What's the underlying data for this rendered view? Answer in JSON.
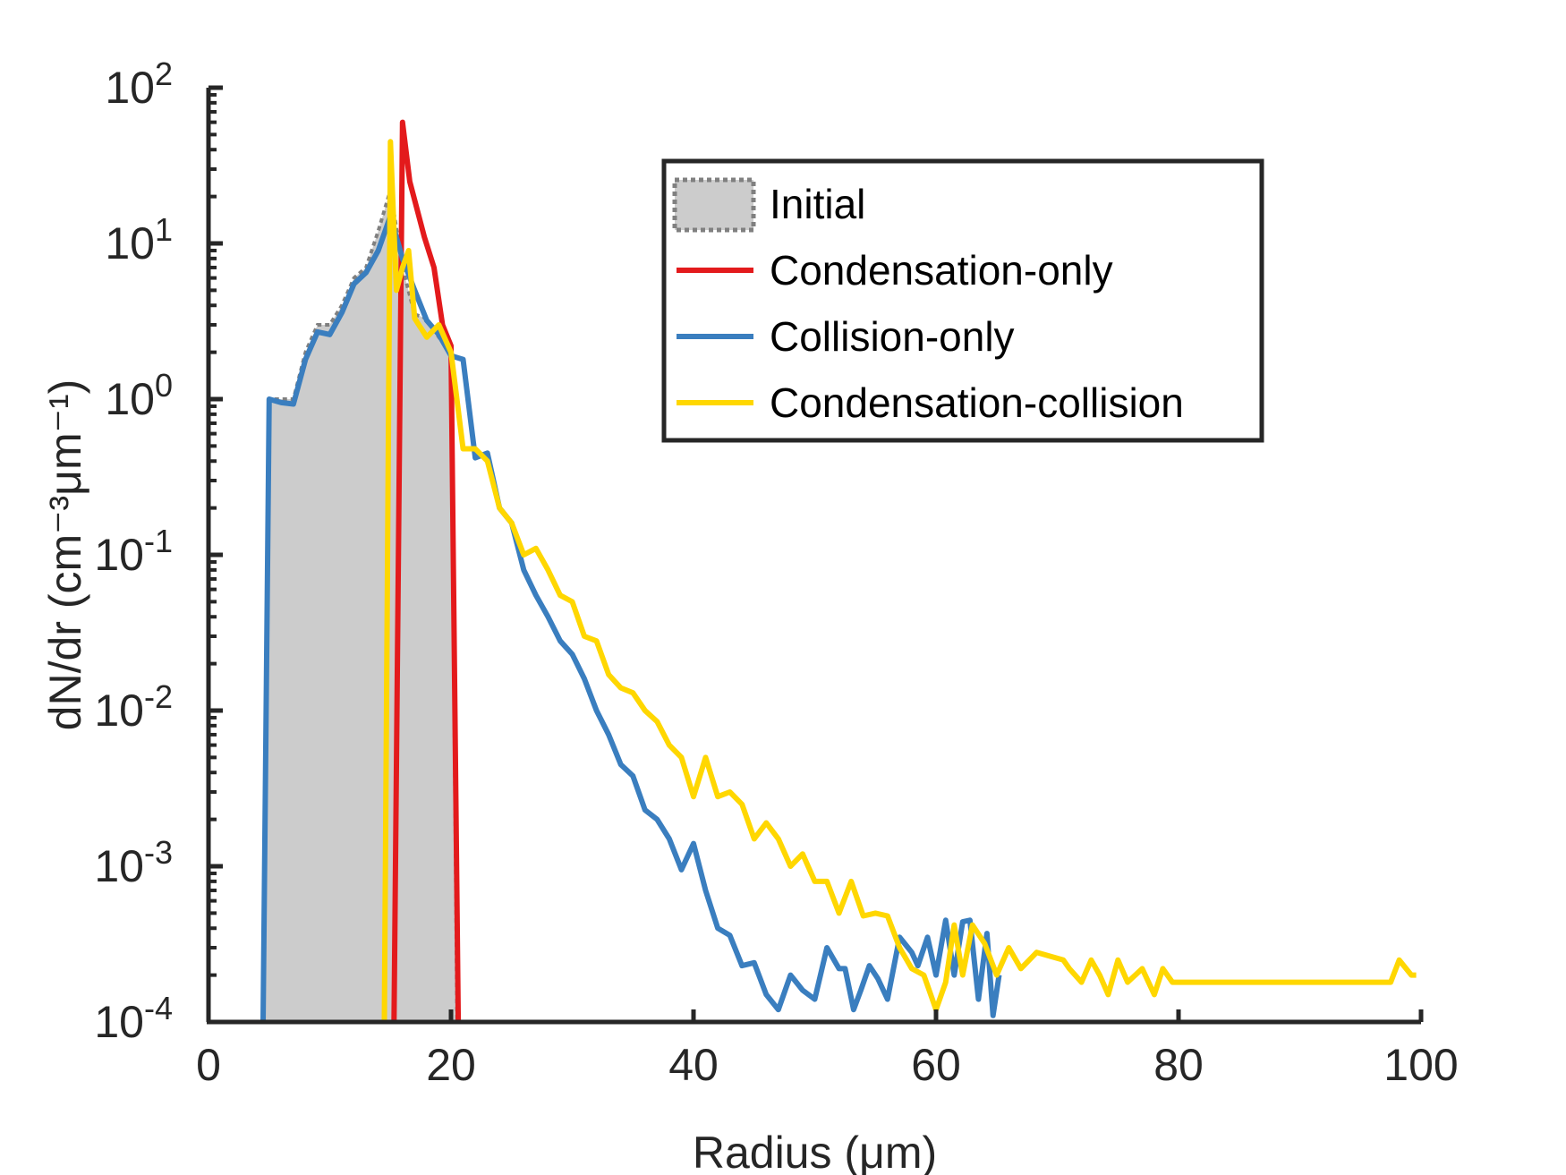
{
  "chart_data": {
    "type": "line",
    "xlabel": "Radius (μm)",
    "ylabel": "dN/dr (cm⁻³μm⁻¹)",
    "xlim": [
      0,
      100
    ],
    "ylim": [
      0.0001,
      100
    ],
    "yscale": "log",
    "xticks": [
      0,
      20,
      40,
      60,
      80,
      100
    ],
    "xtick_labels": [
      "0",
      "20",
      "40",
      "60",
      "80",
      "100"
    ],
    "yticks": [
      {
        "value": 100,
        "base": "10",
        "exp": "2"
      },
      {
        "value": 10,
        "base": "10",
        "exp": "1"
      },
      {
        "value": 1,
        "base": "10",
        "exp": "0"
      },
      {
        "value": 0.1,
        "base": "10",
        "exp": "-1"
      },
      {
        "value": 0.01,
        "base": "10",
        "exp": "-2"
      },
      {
        "value": 0.001,
        "base": "10",
        "exp": "-3"
      },
      {
        "value": 0.0001,
        "base": "10",
        "exp": "-4"
      }
    ],
    "grid": false,
    "legend_position": "top-right",
    "series": [
      {
        "name": "Initial",
        "style": "area",
        "color": "#cccccc",
        "edge_color": "#808080",
        "x": [
          4.5,
          5,
          6,
          7,
          8,
          9,
          10,
          11,
          12,
          13,
          14,
          15,
          16,
          17,
          18,
          19,
          20,
          20.5
        ],
        "y": [
          0.0001,
          1.0,
          1.0,
          1.0,
          2.0,
          3.0,
          3.0,
          4.0,
          6.0,
          7.0,
          12.0,
          22.0,
          7.0,
          3.5,
          3.3,
          2.5,
          2.0,
          0.0001
        ]
      },
      {
        "name": "Condensation-only",
        "style": "line",
        "color": "#e31a1c",
        "x": [
          15.3,
          16,
          16.6,
          17.8,
          18.6,
          19.3,
          20.0,
          20.6
        ],
        "y": [
          0.0001,
          60,
          25,
          11,
          7,
          3.0,
          2.2,
          0.0001
        ]
      },
      {
        "name": "Collision-only",
        "style": "line",
        "color": "#3a7ebf",
        "x": [
          4.5,
          5,
          6,
          7,
          8,
          9,
          10,
          11,
          12,
          13,
          14,
          15,
          16,
          17,
          18,
          19,
          20,
          21,
          22,
          23,
          24,
          25,
          26,
          27,
          28,
          29,
          30,
          31,
          32,
          33,
          34,
          35,
          36,
          37,
          38,
          39,
          40,
          41,
          42,
          43,
          44,
          45,
          46,
          47,
          48,
          49,
          50,
          51,
          52,
          52.5,
          53.2,
          53.8,
          54.5,
          55.2,
          56,
          57,
          58,
          58.5,
          59.3,
          60,
          60.8,
          61.5,
          62.2,
          62.8,
          63.5,
          64.2,
          64.7,
          65.2
        ],
        "y": [
          0.0001,
          1.0,
          0.95,
          0.93,
          1.8,
          2.7,
          2.6,
          3.6,
          5.5,
          6.5,
          9.0,
          15,
          8,
          5,
          3.2,
          2.6,
          1.9,
          1.8,
          0.42,
          0.45,
          0.2,
          0.16,
          0.08,
          0.055,
          0.04,
          0.028,
          0.023,
          0.016,
          0.01,
          0.007,
          0.0045,
          0.0038,
          0.0023,
          0.002,
          0.0015,
          0.00095,
          0.0014,
          0.0007,
          0.0004,
          0.00036,
          0.00023,
          0.00024,
          0.00015,
          0.00012,
          0.0002,
          0.00016,
          0.00014,
          0.0003,
          0.00022,
          0.00022,
          0.00012,
          0.00016,
          0.00023,
          0.00019,
          0.00014,
          0.00035,
          0.00028,
          0.00023,
          0.00035,
          0.0002,
          0.00045,
          0.0002,
          0.00044,
          0.00045,
          0.00014,
          0.00037,
          0.00011,
          0.0002
        ]
      },
      {
        "name": "Condensation-collision",
        "style": "line",
        "color": "#ffd700",
        "x": [
          14.5,
          15,
          15.5,
          16,
          16.5,
          17,
          18,
          19,
          20,
          21,
          22,
          23,
          24,
          25,
          26,
          27,
          28,
          29,
          30,
          31,
          32,
          33,
          34,
          35,
          36,
          37,
          38,
          39,
          40,
          41,
          42,
          43,
          44,
          45,
          46,
          47,
          48,
          49,
          50,
          51,
          52,
          53,
          54,
          55,
          56,
          57,
          58,
          59,
          60,
          60.8,
          61.5,
          62.2,
          63,
          64,
          65,
          66,
          67,
          68.3,
          70.5,
          71,
          72,
          72.8,
          73.5,
          74.2,
          75,
          75.8,
          77,
          78,
          78.7,
          79.5,
          97.5,
          98.2,
          99.2,
          99.6
        ],
        "y": [
          0.0001,
          45,
          5.0,
          7.0,
          9.0,
          3.3,
          2.5,
          3.0,
          2.0,
          0.48,
          0.48,
          0.4,
          0.2,
          0.16,
          0.1,
          0.11,
          0.08,
          0.055,
          0.05,
          0.03,
          0.028,
          0.017,
          0.014,
          0.013,
          0.01,
          0.0085,
          0.006,
          0.005,
          0.0028,
          0.005,
          0.0028,
          0.003,
          0.0025,
          0.0015,
          0.0019,
          0.0015,
          0.001,
          0.0012,
          0.0008,
          0.0008,
          0.0005,
          0.0008,
          0.00048,
          0.0005,
          0.00048,
          0.0003,
          0.00022,
          0.0002,
          0.00012,
          0.00018,
          0.00042,
          0.0002,
          0.00042,
          0.00032,
          0.0002,
          0.0003,
          0.00022,
          0.00028,
          0.00025,
          0.00022,
          0.00018,
          0.00025,
          0.0002,
          0.00015,
          0.00025,
          0.00018,
          0.00022,
          0.00015,
          0.00022,
          0.00018,
          0.00018,
          0.00025,
          0.0002,
          0.0002
        ]
      }
    ]
  },
  "legend": {
    "items": [
      {
        "label": "Initial",
        "kind": "patch",
        "color": "#cccccc",
        "edge_color": "#808080"
      },
      {
        "label": "Condensation-only",
        "kind": "line",
        "color": "#e31a1c"
      },
      {
        "label": "Collision-only",
        "kind": "line",
        "color": "#3a7ebf"
      },
      {
        "label": "Condensation-collision",
        "kind": "line",
        "color": "#ffd700"
      }
    ]
  }
}
